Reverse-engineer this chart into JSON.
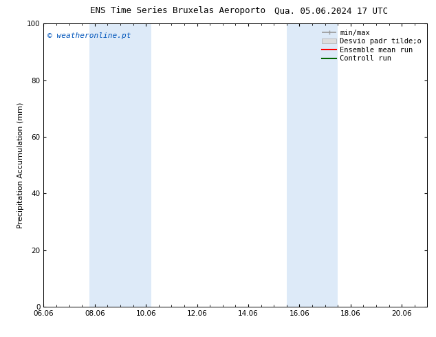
{
  "title_left": "ENS Time Series Bruxelas Aeroporto",
  "title_right": "Qua. 05.06.2024 17 UTC",
  "ylabel": "Precipitation Accumulation (mm)",
  "watermark": "© weatheronline.pt",
  "watermark_color": "#0055bb",
  "ylim": [
    0,
    100
  ],
  "yticks": [
    0,
    20,
    40,
    60,
    80,
    100
  ],
  "xtick_labels": [
    "06.06",
    "08.06",
    "10.06",
    "12.06",
    "14.06",
    "16.06",
    "18.06",
    "20.06"
  ],
  "xtick_positions": [
    0,
    2,
    4,
    6,
    8,
    10,
    12,
    14
  ],
  "x_min": 0,
  "x_max": 15,
  "shaded_bands": [
    {
      "x_start": 1.8,
      "x_end": 4.2,
      "color": "#ddeaf8"
    },
    {
      "x_start": 9.5,
      "x_end": 11.5,
      "color": "#ddeaf8"
    }
  ],
  "legend_entries": [
    {
      "label": "min/max",
      "color": "#999999",
      "lw": 1.2
    },
    {
      "label": "Desvio padr tilde;o",
      "color": "#cccccc",
      "lw": 6
    },
    {
      "label": "Ensemble mean run",
      "color": "#ff0000",
      "lw": 1.5
    },
    {
      "label": "Controll run",
      "color": "#006600",
      "lw": 1.5
    }
  ],
  "bg_color": "#ffffff",
  "title_fontsize": 9,
  "tick_fontsize": 7.5,
  "ylabel_fontsize": 8,
  "watermark_fontsize": 8,
  "legend_fontsize": 7.5
}
